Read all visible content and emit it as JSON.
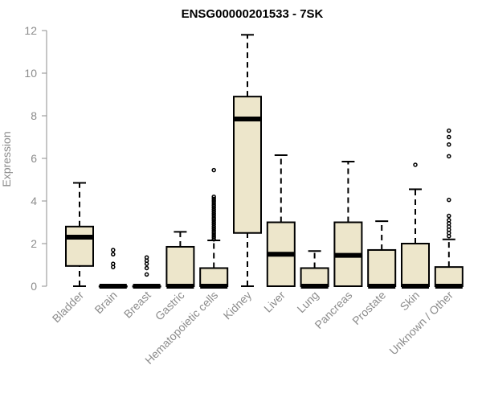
{
  "chart_data": {
    "type": "boxplot",
    "title": "ENSG00000201533 - 7SK",
    "xlabel": "",
    "ylabel": "Expression",
    "ylim": [
      0,
      12
    ],
    "yticks": [
      0,
      2,
      4,
      6,
      8,
      10,
      12
    ],
    "grid": false,
    "legend": "none",
    "categories": [
      "Bladder",
      "Brain",
      "Breast",
      "Gastric",
      "Hematopoietic cells",
      "Kidney",
      "Liver",
      "Lung",
      "Pancreas",
      "Prostate",
      "Skin",
      "Unknown / Other"
    ],
    "boxes": [
      {
        "category": "Bladder",
        "q1": 0.95,
        "median": 2.3,
        "q3": 2.8,
        "whisker_low": 0,
        "whisker_high": 4.85,
        "outliers": []
      },
      {
        "category": "Brain",
        "q1": 0,
        "median": 0,
        "q3": 0,
        "whisker_low": 0,
        "whisker_high": 0,
        "outliers": [
          0.9,
          1.05,
          1.5,
          1.7
        ]
      },
      {
        "category": "Breast",
        "q1": 0,
        "median": 0,
        "q3": 0,
        "whisker_low": 0,
        "whisker_high": 0,
        "outliers": [
          0.55,
          0.85,
          1.05,
          1.2,
          1.35
        ]
      },
      {
        "category": "Gastric",
        "q1": 0,
        "median": 0,
        "q3": 1.85,
        "whisker_low": 0,
        "whisker_high": 2.55,
        "outliers": []
      },
      {
        "category": "Hematopoietic cells",
        "q1": 0,
        "median": 0,
        "q3": 0.85,
        "whisker_low": 0,
        "whisker_high": 2.15,
        "outliers": [
          2.2,
          2.3,
          2.4,
          2.5,
          2.6,
          2.7,
          2.8,
          2.9,
          3.0,
          3.1,
          3.2,
          3.3,
          3.4,
          3.5,
          3.6,
          3.7,
          3.8,
          3.9,
          4.0,
          4.1,
          4.2,
          5.45
        ]
      },
      {
        "category": "Kidney",
        "q1": 2.5,
        "median": 7.85,
        "q3": 8.9,
        "whisker_low": 0,
        "whisker_high": 11.8,
        "outliers": []
      },
      {
        "category": "Liver",
        "q1": 0,
        "median": 1.5,
        "q3": 3.0,
        "whisker_low": 0,
        "whisker_high": 6.15,
        "outliers": []
      },
      {
        "category": "Lung",
        "q1": 0,
        "median": 0,
        "q3": 0.85,
        "whisker_low": 0,
        "whisker_high": 1.65,
        "outliers": []
      },
      {
        "category": "Pancreas",
        "q1": 0,
        "median": 1.45,
        "q3": 3.0,
        "whisker_low": 0,
        "whisker_high": 5.85,
        "outliers": []
      },
      {
        "category": "Prostate",
        "q1": 0,
        "median": 0,
        "q3": 1.7,
        "whisker_low": 0,
        "whisker_high": 3.05,
        "outliers": []
      },
      {
        "category": "Skin",
        "q1": 0,
        "median": 0,
        "q3": 2.0,
        "whisker_low": 0,
        "whisker_high": 4.55,
        "outliers": [
          5.7
        ]
      },
      {
        "category": "Unknown / Other",
        "q1": 0,
        "median": 0,
        "q3": 0.9,
        "whisker_low": 0,
        "whisker_high": 2.2,
        "outliers": [
          2.35,
          2.5,
          2.65,
          2.8,
          2.95,
          3.1,
          3.3,
          4.05,
          6.1,
          6.65,
          7.0,
          7.3
        ]
      }
    ],
    "colors": {
      "box_fill": "#ede6cb",
      "box_stroke": "#000000",
      "median": "#000000",
      "axis": "#8c8c8c",
      "text": "#8c8c8c"
    }
  }
}
